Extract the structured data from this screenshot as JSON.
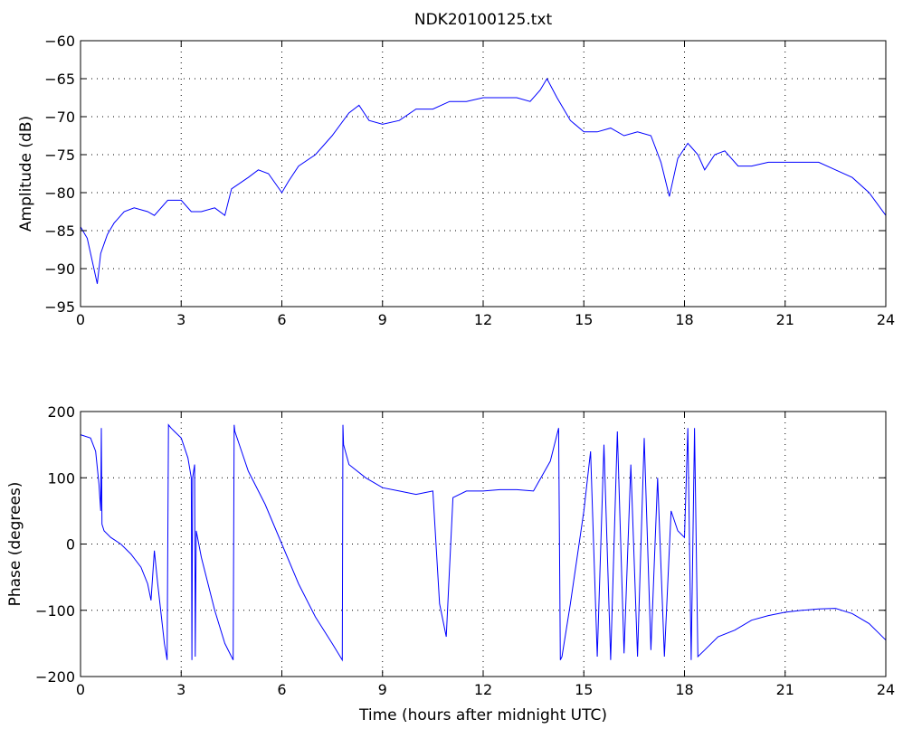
{
  "figure": {
    "title": "NDK20100125.txt"
  },
  "chart_data": [
    {
      "type": "line",
      "title": "NDK20100125.txt",
      "xlabel": "",
      "ylabel": "Amplitude (dB)",
      "xlim": [
        0,
        24
      ],
      "ylim": [
        -95,
        -60
      ],
      "xticks": [
        "0",
        "3",
        "6",
        "9",
        "12",
        "15",
        "18",
        "21",
        "24"
      ],
      "yticks": [
        "-60",
        "-65",
        "-70",
        "-75",
        "-80",
        "-85",
        "-90",
        "-95"
      ],
      "grid": true,
      "color": "#0000ff",
      "x": [
        0,
        0.2,
        0.4,
        0.5,
        0.6,
        0.8,
        1.0,
        1.3,
        1.6,
        2.0,
        2.2,
        2.6,
        3.0,
        3.3,
        3.6,
        4.0,
        4.3,
        4.5,
        5.0,
        5.3,
        5.6,
        6.0,
        6.2,
        6.5,
        7.0,
        7.5,
        8.0,
        8.3,
        8.6,
        9.0,
        9.5,
        10.0,
        10.5,
        11.0,
        11.5,
        12.0,
        12.5,
        13.0,
        13.4,
        13.7,
        13.9,
        14.2,
        14.6,
        15.0,
        15.4,
        15.8,
        16.2,
        16.6,
        17.0,
        17.3,
        17.55,
        17.8,
        18.1,
        18.4,
        18.6,
        18.9,
        19.2,
        19.6,
        20.0,
        20.5,
        21.0,
        21.5,
        22.0,
        22.5,
        23.0,
        23.5,
        24.0
      ],
      "y": [
        -84.5,
        -86,
        -90,
        -92,
        -88,
        -85.5,
        -84,
        -82.5,
        -82,
        -82.5,
        -83,
        -81,
        -81,
        -82.5,
        -82.5,
        -82,
        -83,
        -79.5,
        -78,
        -77,
        -77.5,
        -80,
        -78.5,
        -76.5,
        -75,
        -72.5,
        -69.5,
        -68.5,
        -70.5,
        -71,
        -70.5,
        -69,
        -69,
        -68,
        -68,
        -67.5,
        -67.5,
        -67.5,
        -68,
        -66.5,
        -65,
        -67.5,
        -70.5,
        -72,
        -72,
        -71.5,
        -72.5,
        -72,
        -72.5,
        -76,
        -80.5,
        -75.5,
        -73.5,
        -75,
        -77,
        -75,
        -74.5,
        -76.5,
        -76.5,
        -76,
        -76,
        -76,
        -76,
        -77,
        -78,
        -80,
        -83
      ]
    },
    {
      "type": "line",
      "title": "",
      "xlabel": "Time (hours after midnight UTC)",
      "ylabel": "Phase (degrees)",
      "xlim": [
        0,
        24
      ],
      "ylim": [
        -200,
        200
      ],
      "xticks": [
        "0",
        "3",
        "6",
        "9",
        "12",
        "15",
        "18",
        "21",
        "24"
      ],
      "yticks": [
        "200",
        "100",
        "0",
        "-100",
        "-200"
      ],
      "grid": true,
      "color": "#0000ff",
      "x": [
        0,
        0.3,
        0.45,
        0.55,
        0.6,
        0.62,
        0.64,
        0.7,
        0.9,
        1.2,
        1.5,
        1.8,
        2.0,
        2.1,
        2.2,
        2.3,
        2.5,
        2.58,
        2.62,
        2.7,
        2.8,
        3.0,
        3.2,
        3.3,
        3.32,
        3.34,
        3.4,
        3.42,
        3.45,
        3.6,
        3.8,
        4.0,
        4.3,
        4.55,
        4.58,
        4.6,
        4.8,
        5.0,
        5.5,
        6.0,
        6.5,
        7.0,
        7.5,
        7.8,
        7.82,
        7.84,
        8.0,
        8.5,
        9.0,
        9.5,
        10.0,
        10.5,
        10.7,
        10.9,
        11.1,
        11.5,
        12.0,
        12.5,
        13.0,
        13.5,
        14.0,
        14.25,
        14.3,
        14.35,
        14.6,
        15.0,
        15.2,
        15.4,
        15.6,
        15.8,
        16.0,
        16.2,
        16.4,
        16.6,
        16.8,
        17.0,
        17.2,
        17.4,
        17.6,
        17.8,
        18.0,
        18.1,
        18.2,
        18.3,
        18.4,
        18.6,
        19.0,
        19.5,
        20.0,
        20.5,
        21.0,
        21.5,
        22.0,
        22.5,
        23.0,
        23.5,
        24.0
      ],
      "y": [
        165,
        160,
        140,
        90,
        50,
        175,
        30,
        20,
        10,
        0,
        -15,
        -35,
        -60,
        -85,
        -10,
        -60,
        -150,
        -175,
        180,
        175,
        170,
        160,
        130,
        100,
        -175,
        100,
        120,
        -170,
        20,
        -20,
        -60,
        -100,
        -150,
        -175,
        180,
        170,
        140,
        110,
        60,
        0,
        -60,
        -110,
        -150,
        -175,
        180,
        150,
        120,
        100,
        85,
        80,
        75,
        80,
        -90,
        -140,
        70,
        80,
        80,
        82,
        82,
        80,
        125,
        175,
        -175,
        -170,
        -90,
        50,
        140,
        -170,
        150,
        -175,
        170,
        -165,
        120,
        -170,
        160,
        -160,
        100,
        -170,
        50,
        20,
        10,
        175,
        -175,
        175,
        -170,
        -160,
        -140,
        -130,
        -115,
        -108,
        -103,
        -100,
        -98,
        -97,
        -105,
        -120,
        -145
      ]
    }
  ]
}
